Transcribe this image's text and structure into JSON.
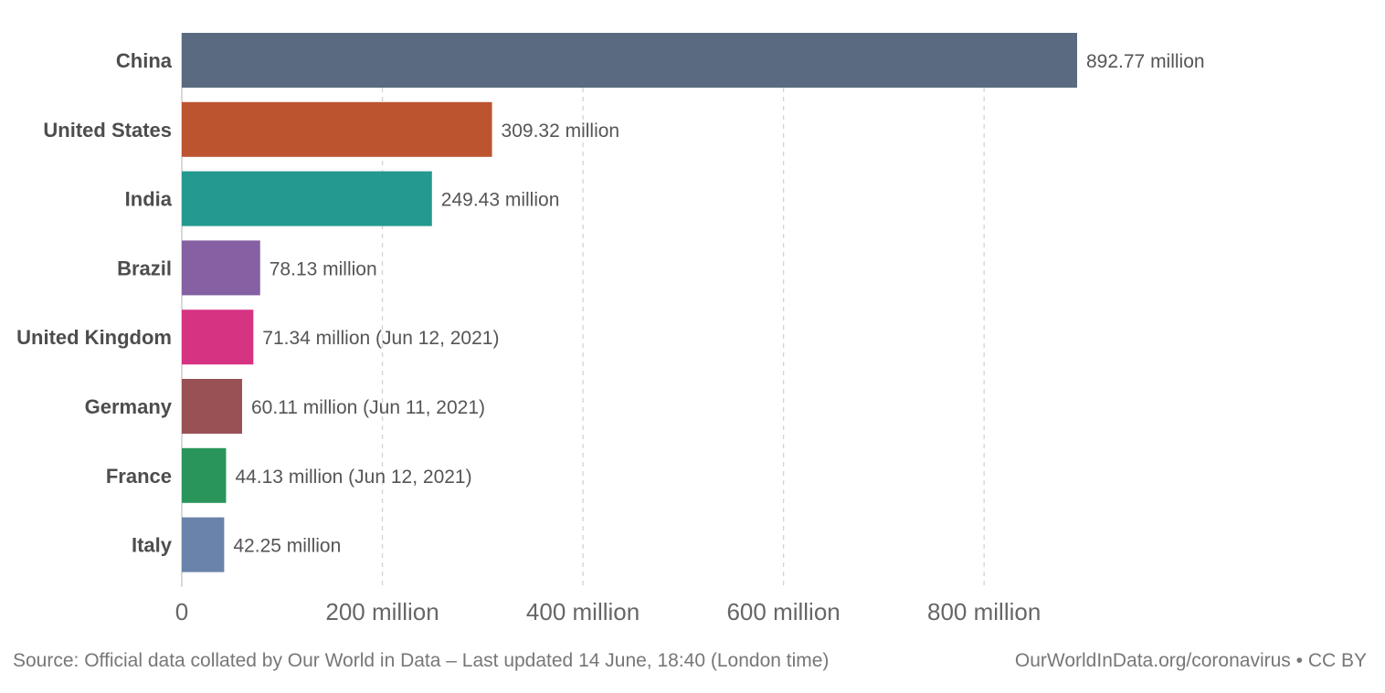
{
  "chart_data": {
    "type": "bar",
    "orientation": "horizontal",
    "categories": [
      "China",
      "United States",
      "India",
      "Brazil",
      "United Kingdom",
      "Germany",
      "France",
      "Italy"
    ],
    "values": [
      892.77,
      309.32,
      249.43,
      78.13,
      71.34,
      60.11,
      44.13,
      42.25
    ],
    "value_unit": "million",
    "data_labels": [
      "892.77 million",
      "309.32 million",
      "249.43 million",
      "78.13 million",
      "71.34 million (Jun 12, 2021)",
      "60.11 million (Jun 11, 2021)",
      "44.13 million (Jun 12, 2021)",
      "42.25 million"
    ],
    "colors": [
      "#5a6a80",
      "#bd5430",
      "#249990",
      "#8560a3",
      "#d63383",
      "#995155",
      "#2a955a",
      "#6a83aa"
    ],
    "xlim": [
      0,
      892.77
    ],
    "xticks": [
      0,
      200,
      400,
      600,
      800
    ],
    "xtick_labels": [
      "0",
      "200 million",
      "400 million",
      "600 million",
      "800 million"
    ],
    "grid": "vertical-dashed",
    "legend": "none",
    "title": "",
    "xlabel": "",
    "ylabel": ""
  },
  "footer": {
    "source": "Source: Official data collated by Our World in Data – Last updated 14 June, 18:40 (London time)",
    "license": "OurWorldInData.org/coronavirus • CC BY"
  }
}
